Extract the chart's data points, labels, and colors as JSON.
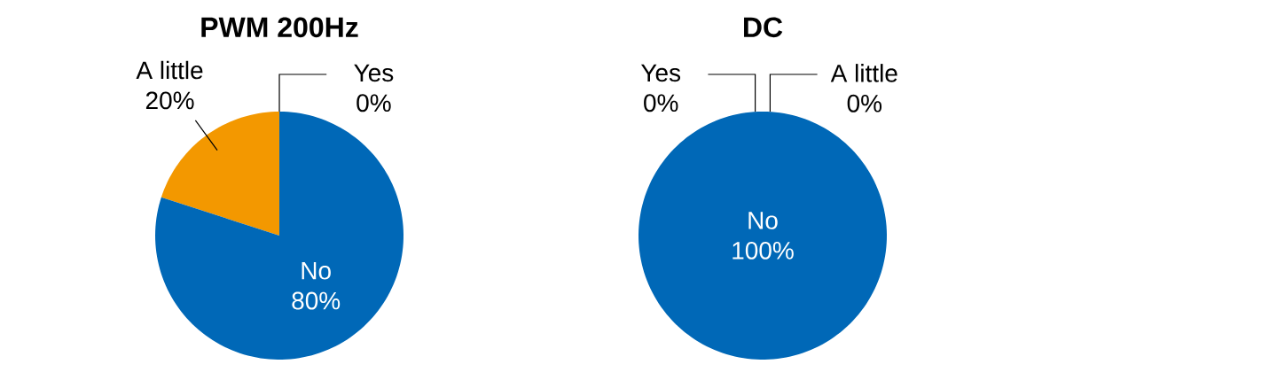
{
  "chart_data": [
    {
      "type": "pie",
      "title": "PWM 200Hz",
      "categories": [
        "Yes",
        "A little",
        "No"
      ],
      "values": [
        0,
        20,
        80
      ],
      "value_labels": [
        "0%",
        "20%",
        "80%"
      ],
      "colors": [
        "#9fa0a0",
        "#f39800",
        "#0068b7"
      ]
    },
    {
      "type": "pie",
      "title": "DC",
      "categories": [
        "Yes",
        "A little",
        "No"
      ],
      "values": [
        0,
        0,
        100
      ],
      "value_labels": [
        "0%",
        "0%",
        "100%"
      ],
      "colors": [
        "#9fa0a0",
        "#f39800",
        "#0068b7"
      ]
    }
  ]
}
